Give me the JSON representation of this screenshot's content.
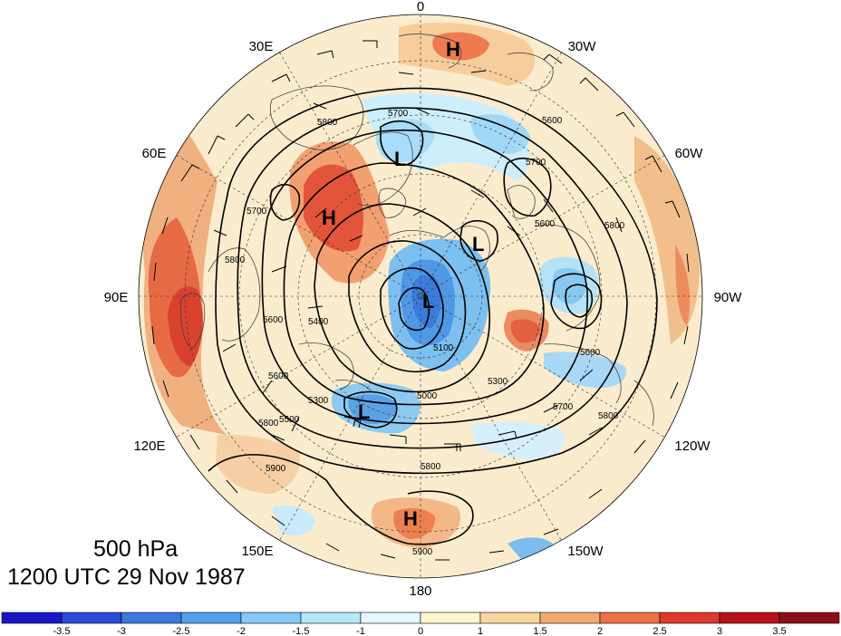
{
  "title": {
    "level": "500 hPa",
    "time": "1200 UTC 29 Nov 1987"
  },
  "longitude_labels": [
    {
      "key": "lon-0",
      "text": "0"
    },
    {
      "key": "lon-30w",
      "text": "30W"
    },
    {
      "key": "lon-60w",
      "text": "60W"
    },
    {
      "key": "lon-90w",
      "text": "90W"
    },
    {
      "key": "lon-120w",
      "text": "120W"
    },
    {
      "key": "lon-150w",
      "text": "150W"
    },
    {
      "key": "lon-180",
      "text": "180"
    },
    {
      "key": "lon-150e",
      "text": "150E"
    },
    {
      "key": "lon-120e",
      "text": "120E"
    },
    {
      "key": "lon-90e",
      "text": "90E"
    },
    {
      "key": "lon-60e",
      "text": "60E"
    },
    {
      "key": "lon-30e",
      "text": "30E"
    }
  ],
  "pressure_centers": [
    {
      "type": "H"
    },
    {
      "type": "H"
    },
    {
      "type": "H"
    },
    {
      "type": "L"
    },
    {
      "type": "L"
    },
    {
      "type": "L"
    },
    {
      "type": "L"
    }
  ],
  "contour_labels": [
    "5800",
    "5700",
    "5600",
    "5700",
    "5800",
    "5600",
    "5800",
    "5600",
    "5700",
    "5400",
    "5600",
    "5800",
    "5900",
    "5800",
    "5900",
    "5600",
    "5300",
    "5100",
    "5000",
    "5300",
    "5700",
    "5800",
    "5500"
  ],
  "colorbar": {
    "ticks": [
      "-3.5",
      "-3",
      "-2.5",
      "-2",
      "-1.5",
      "-1",
      "0",
      "1",
      "1.5",
      "2",
      "2.5",
      "3",
      "3.5"
    ],
    "colors": [
      "#1a16c8",
      "#2a4ad6",
      "#3c78e2",
      "#55a0ee",
      "#86c8f6",
      "#b6e8fb",
      "#e4f6fb",
      "#fff6d0",
      "#f8d8a0",
      "#f4a870",
      "#ee7048",
      "#dc3a2c",
      "#b8121c",
      "#8c0c18"
    ]
  },
  "colors": {
    "land_outline": "#444444",
    "contour": "#000000"
  }
}
